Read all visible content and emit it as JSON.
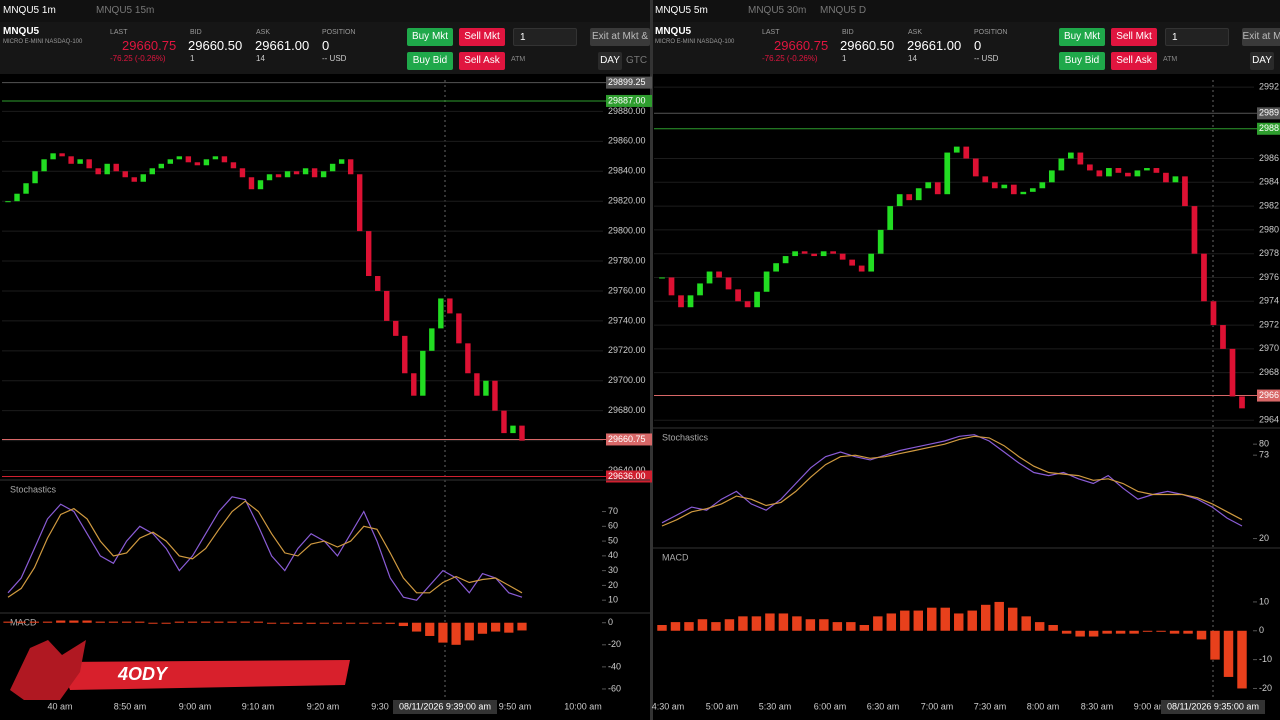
{
  "left": {
    "tabs": [
      "MNQU5 1m",
      "MNQU5 15m"
    ],
    "symbol": "MNQU5",
    "description": "MICRO E-MINI NASDAQ-100",
    "quote": {
      "last_label": "LAST",
      "last": "29660.75",
      "change": "-76.25 (-0.26%)",
      "bid_label": "BID",
      "bid": "29660.50",
      "bid_size": "1",
      "ask_label": "ASK",
      "ask": "29661.00",
      "ask_size": "14",
      "position_label": "POSITION",
      "position": "0",
      "position_usd": "-- USD"
    },
    "buttons": {
      "buy_mkt": "Buy Mkt",
      "sell_mkt": "Sell Mkt",
      "buy_bid": "Buy Bid",
      "sell_ask": "Sell Ask",
      "quantity": "1",
      "exit": "Exit at Mkt &",
      "atm": "ATM",
      "day": "DAY",
      "gtc": "GTC"
    },
    "price": {
      "ylim": [
        29635,
        29901
      ],
      "ticks": [
        {
          "value": 29880,
          "label": "29880.00"
        },
        {
          "value": 29860,
          "label": "29860.00"
        },
        {
          "value": 29840,
          "label": "29840.00"
        },
        {
          "value": 29820,
          "label": "29820.00"
        },
        {
          "value": 29800,
          "label": "29800.00"
        },
        {
          "value": 29780,
          "label": "29780.00"
        },
        {
          "value": 29760,
          "label": "29760.00"
        },
        {
          "value": 29740,
          "label": "29740.00"
        },
        {
          "value": 29720,
          "label": "29720.00"
        },
        {
          "value": 29700,
          "label": "29700.00"
        },
        {
          "value": 29680,
          "label": "29680.00"
        },
        {
          "value": 29660,
          "label": "29660.00"
        },
        {
          "value": 29640,
          "label": "29640.00"
        }
      ],
      "markers": [
        {
          "value": 29899.25,
          "label": "29899.25",
          "color": "#555555"
        },
        {
          "value": 29887,
          "label": "29887.00",
          "color": "#2e9e2e"
        },
        {
          "value": 29660.75,
          "label": "29660.75",
          "color": "#d86868"
        },
        {
          "value": 29636,
          "label": "29636.00",
          "color": "#d02030"
        }
      ],
      "closes": [
        29820,
        29825,
        29832,
        29840,
        29848,
        29852,
        29850,
        29845,
        29848,
        29842,
        29838,
        29845,
        29840,
        29836,
        29833,
        29838,
        29842,
        29845,
        29848,
        29850,
        29846,
        29844,
        29848,
        29850,
        29846,
        29842,
        29836,
        29828,
        29834,
        29838,
        29836,
        29840,
        29838,
        29842,
        29836,
        29840,
        29845,
        29848,
        29838,
        29800,
        29770,
        29760,
        29740,
        29730,
        29705,
        29690,
        29720,
        29735,
        29755,
        29745,
        29725,
        29705,
        29690,
        29700,
        29680,
        29665,
        29670,
        29660
      ]
    },
    "time_labels": [
      "40 am",
      "8:50 am",
      "9:00 am",
      "9:10 am",
      "9:20 am",
      "9:30",
      "9:50 am",
      "10:00 am"
    ],
    "crosshair": "08/11/2026 9:39:00 am",
    "stochastics": {
      "label": "Stochastics",
      "ylim": [
        2,
        90
      ],
      "ticks": [
        70,
        60,
        50,
        40,
        30,
        20,
        10
      ],
      "k": [
        15,
        25,
        45,
        65,
        75,
        70,
        55,
        40,
        35,
        50,
        60,
        55,
        45,
        30,
        40,
        55,
        70,
        80,
        78,
        60,
        40,
        30,
        45,
        55,
        50,
        40,
        55,
        70,
        50,
        25,
        12,
        10,
        20,
        30,
        25,
        15,
        28,
        25,
        15,
        12
      ],
      "d": [
        12,
        18,
        32,
        52,
        68,
        72,
        65,
        50,
        40,
        42,
        52,
        56,
        50,
        40,
        38,
        45,
        58,
        70,
        77,
        70,
        55,
        42,
        40,
        48,
        50,
        46,
        50,
        60,
        58,
        42,
        25,
        15,
        15,
        22,
        26,
        22,
        24,
        25,
        20,
        15
      ]
    },
    "macd": {
      "label": "MACD",
      "ylim": [
        -70,
        7
      ],
      "ticks": [
        0,
        -20,
        -40,
        -60
      ],
      "values": [
        1,
        1,
        1,
        1,
        2,
        2,
        2,
        1,
        1,
        1,
        1,
        0,
        0,
        1,
        1,
        1,
        1,
        1,
        1,
        1,
        0,
        0,
        -1,
        -1,
        0,
        0,
        0,
        0,
        0,
        -1,
        -3,
        -8,
        -12,
        -18,
        -20,
        -16,
        -10,
        -8,
        -9,
        -7
      ]
    }
  },
  "right": {
    "tabs": [
      "MNQU5 5m",
      "MNQU5 30m",
      "MNQU5 D"
    ],
    "symbol": "MNQU5",
    "description": "MICRO E-MINI NASDAQ-100",
    "quote": {
      "last_label": "LAST",
      "last": "29660.75",
      "change": "-76.25 (-0.26%)",
      "bid_label": "BID",
      "bid": "29660.50",
      "bid_size": "1",
      "ask_label": "ASK",
      "ask": "29661.00",
      "ask_size": "14",
      "position_label": "POSITION",
      "position": "0",
      "position_usd": "-- USD"
    },
    "buttons": {
      "buy_mkt": "Buy Mkt",
      "sell_mkt": "Sell Mkt",
      "buy_bid": "Buy Bid",
      "sell_ask": "Sell Ask",
      "quantity": "1",
      "exit": "Exit at M",
      "atm": "ATM",
      "day": "DAY"
    },
    "price": {
      "ylim": [
        29636,
        29926
      ],
      "ticks": [
        {
          "value": 29920,
          "label": "2992"
        },
        {
          "value": 29860,
          "label": "2986"
        },
        {
          "value": 29840,
          "label": "2984"
        },
        {
          "value": 29820,
          "label": "2982"
        },
        {
          "value": 29800,
          "label": "2980"
        },
        {
          "value": 29780,
          "label": "2978"
        },
        {
          "value": 29760,
          "label": "2976"
        },
        {
          "value": 29740,
          "label": "2974"
        },
        {
          "value": 29720,
          "label": "2972"
        },
        {
          "value": 29700,
          "label": "2970"
        },
        {
          "value": 29680,
          "label": "2968"
        },
        {
          "value": 29640,
          "label": "2964"
        }
      ],
      "markers": [
        {
          "value": 29898,
          "label": "2989",
          "color": "#555555"
        },
        {
          "value": 29885,
          "label": "2988",
          "color": "#2e9e2e"
        },
        {
          "value": 29660.75,
          "label": "2966",
          "color": "#d86868"
        }
      ],
      "closes": [
        29760,
        29745,
        29735,
        29745,
        29755,
        29765,
        29760,
        29750,
        29740,
        29735,
        29748,
        29765,
        29772,
        29778,
        29782,
        29780,
        29778,
        29782,
        29780,
        29775,
        29770,
        29765,
        29780,
        29800,
        29820,
        29830,
        29825,
        29835,
        29840,
        29830,
        29865,
        29870,
        29860,
        29845,
        29840,
        29835,
        29838,
        29830,
        29832,
        29835,
        29840,
        29850,
        29860,
        29865,
        29855,
        29850,
        29845,
        29852,
        29848,
        29845,
        29850,
        29852,
        29848,
        29840,
        29845,
        29820,
        29780,
        29740,
        29720,
        29700,
        29660,
        29650
      ]
    },
    "time_labels": [
      "4:30 am",
      "5:00 am",
      "5:30 am",
      "6:00 am",
      "6:30 am",
      "7:00 am",
      "7:30 am",
      "8:00 am",
      "8:30 am",
      "9:00 am"
    ],
    "crosshair": "08/11/2026 9:35:00 am",
    "stochastics": {
      "label": "Stochastics",
      "ylim": [
        14,
        89
      ],
      "ticks": [
        80,
        73,
        20
      ],
      "k": [
        30,
        35,
        40,
        38,
        45,
        50,
        42,
        38,
        45,
        55,
        65,
        72,
        75,
        72,
        70,
        73,
        76,
        78,
        80,
        82,
        85,
        86,
        82,
        75,
        68,
        62,
        60,
        62,
        58,
        55,
        60,
        52,
        45,
        48,
        50,
        48,
        45,
        40,
        33,
        28
      ],
      "d": [
        28,
        32,
        37,
        39,
        42,
        47,
        45,
        41,
        43,
        50,
        59,
        67,
        72,
        73,
        71,
        72,
        74,
        76,
        78,
        80,
        83,
        85,
        84,
        79,
        72,
        66,
        62,
        61,
        60,
        57,
        58,
        55,
        50,
        48,
        48,
        48,
        46,
        42,
        37,
        32
      ]
    },
    "macd": {
      "label": "MACD",
      "ylim": [
        -24,
        28
      ],
      "ticks": [
        10,
        0,
        -10,
        -20
      ],
      "values": [
        2,
        3,
        3,
        4,
        3,
        4,
        5,
        5,
        6,
        6,
        5,
        4,
        4,
        3,
        3,
        2,
        5,
        6,
        7,
        7,
        8,
        8,
        6,
        7,
        9,
        10,
        8,
        5,
        3,
        2,
        -1,
        -2,
        -2,
        -1,
        -1,
        -1,
        0,
        0,
        -1,
        -1,
        -3,
        -10,
        -16,
        -20
      ]
    }
  },
  "logo": "4ODY"
}
